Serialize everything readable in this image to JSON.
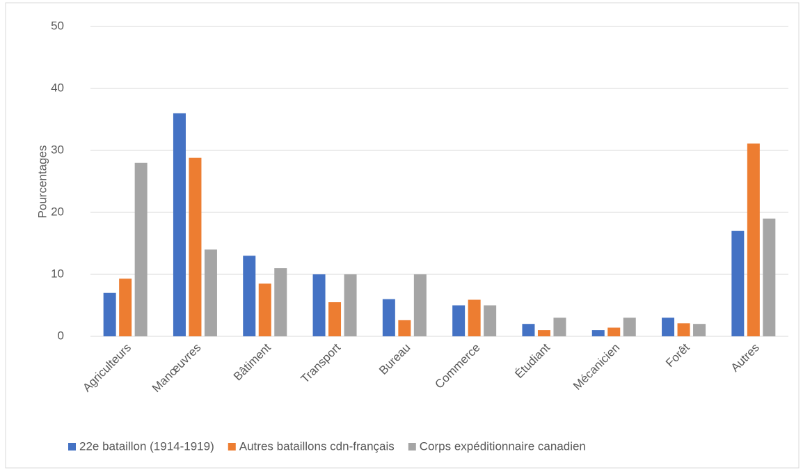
{
  "chart_data": {
    "type": "bar",
    "y_label": "Pourcentages",
    "categories": [
      "Agriculteurs",
      "Manœuvres",
      "Bâtiment",
      "Transport",
      "Bureau",
      "Commerce",
      "Étudiant",
      "Mécanicien",
      "Forêt",
      "Autres"
    ],
    "series": [
      {
        "name": "22e bataillon (1914-1919)",
        "color": "#4472c4",
        "values": [
          7,
          36,
          13,
          10,
          6,
          5,
          2,
          1,
          3,
          17
        ]
      },
      {
        "name": "Autres bataillons cdn-français",
        "color": "#ed7d31",
        "values": [
          9.3,
          28.8,
          8.5,
          5.5,
          2.6,
          5.9,
          1,
          1.4,
          2.1,
          31.1
        ]
      },
      {
        "name": "Corps expéditionnaire canadien",
        "color": "#a5a5a5",
        "values": [
          28,
          14,
          11,
          10,
          10,
          5,
          3,
          3,
          2,
          19
        ]
      }
    ],
    "ylim": [
      0,
      50
    ],
    "yticks": [
      0,
      10,
      20,
      30,
      40,
      50
    ],
    "grid": true,
    "legend": "bottom"
  }
}
